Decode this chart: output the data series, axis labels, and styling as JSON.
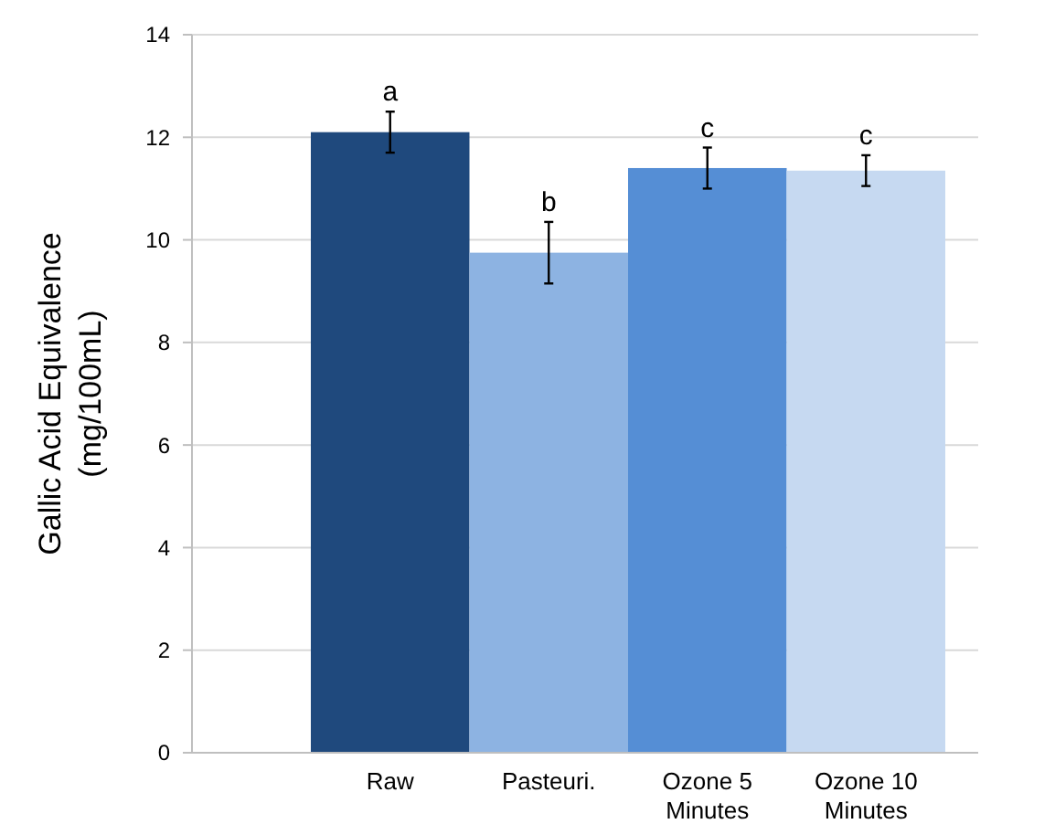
{
  "chart_data": {
    "type": "bar",
    "ylabel": "Gallic Acid Equivalence (mg/100mL)",
    "categories": [
      "Raw",
      "Pasteuri.",
      "Ozone 5 Minutes",
      "Ozone 10 Minutes"
    ],
    "values": [
      12.1,
      9.75,
      11.4,
      11.35
    ],
    "colors": [
      "#1f497d",
      "#8db3e2",
      "#558ed5",
      "#c6d9f1"
    ],
    "errors": [
      0.4,
      0.6,
      0.4,
      0.3
    ],
    "ylim": [
      0,
      14
    ],
    "yticks": [
      0,
      2,
      4,
      6,
      8,
      10,
      12,
      14
    ],
    "grid": "y",
    "annotations": [
      {
        "text": "a",
        "x": "Raw",
        "y": 12.5
      },
      {
        "text": "b",
        "x": "Pasteuri.",
        "y": 10.35
      },
      {
        "text": "c",
        "x": "Ozone 5 Minutes",
        "y": 11.8
      },
      {
        "text": "c",
        "x": "Ozone 10 Minutes",
        "y": 11.65
      }
    ]
  }
}
